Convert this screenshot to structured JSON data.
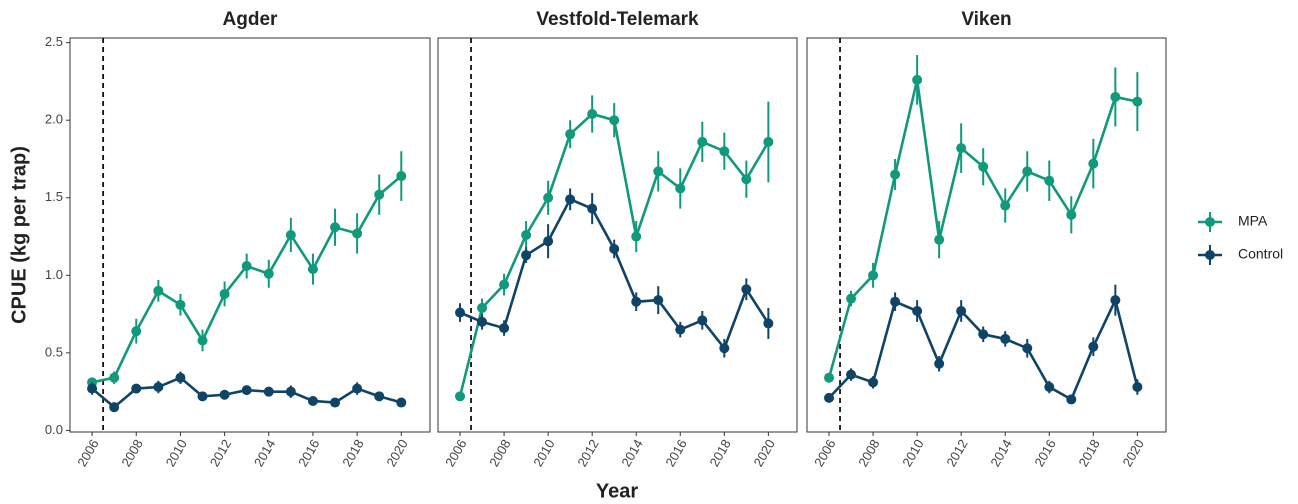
{
  "y_label": "CPUE (kg per trap)",
  "x_label": "Year",
  "chart_data": [
    {
      "type": "line",
      "title": "Agder",
      "x": [
        2006,
        2007,
        2008,
        2009,
        2010,
        2011,
        2012,
        2013,
        2014,
        2015,
        2016,
        2017,
        2018,
        2019,
        2020
      ],
      "series": [
        {
          "name": "MPA",
          "color": "#11997b",
          "values": [
            0.31,
            0.34,
            0.64,
            0.9,
            0.81,
            0.58,
            0.88,
            1.06,
            1.01,
            1.26,
            1.04,
            1.31,
            1.27,
            1.52,
            1.64
          ],
          "errors": [
            0.03,
            0.04,
            0.08,
            0.07,
            0.07,
            0.07,
            0.08,
            0.08,
            0.09,
            0.11,
            0.1,
            0.12,
            0.13,
            0.13,
            0.16
          ]
        },
        {
          "name": "Control",
          "color": "#0f4466",
          "values": [
            0.27,
            0.15,
            0.27,
            0.28,
            0.34,
            0.22,
            0.23,
            0.26,
            0.25,
            0.25,
            0.19,
            0.18,
            0.27,
            0.22,
            0.18
          ],
          "errors": [
            0.04,
            0.02,
            0.03,
            0.04,
            0.04,
            0.02,
            0.03,
            0.03,
            0.03,
            0.04,
            0.02,
            0.02,
            0.04,
            0.02,
            0.02
          ]
        }
      ],
      "marker_x": 2006.5,
      "xlim": [
        2005,
        2021.3
      ],
      "xticks": [
        2006,
        2008,
        2010,
        2012,
        2014,
        2016,
        2018,
        2020
      ],
      "ylim": [
        -0.01,
        2.53
      ],
      "yticks": [
        {
          "value": 0,
          "label": "0.0"
        },
        {
          "value": 0.5,
          "label": "0.5"
        },
        {
          "value": 1,
          "label": "1.0"
        },
        {
          "value": 1.5,
          "label": "1.5"
        },
        {
          "value": 2,
          "label": "2.0"
        },
        {
          "value": 2.5,
          "label": "2.5"
        }
      ]
    },
    {
      "type": "line",
      "title": "Vestfold-Telemark",
      "x": [
        2006,
        2007,
        2008,
        2009,
        2010,
        2011,
        2012,
        2013,
        2014,
        2015,
        2016,
        2017,
        2018,
        2019,
        2020
      ],
      "series": [
        {
          "name": "MPA",
          "color": "#11997b",
          "values": [
            0.22,
            0.79,
            0.94,
            1.26,
            1.5,
            1.91,
            2.04,
            2.0,
            1.25,
            1.67,
            1.56,
            1.86,
            1.8,
            1.62,
            1.86
          ],
          "errors": [
            0.02,
            0.06,
            0.07,
            0.09,
            0.11,
            0.09,
            0.12,
            0.11,
            0.1,
            0.13,
            0.13,
            0.13,
            0.12,
            0.12,
            0.26
          ]
        },
        {
          "name": "Control",
          "color": "#0f4466",
          "values": [
            0.76,
            0.7,
            0.66,
            1.13,
            1.22,
            1.49,
            1.43,
            1.17,
            0.83,
            0.84,
            0.65,
            0.71,
            0.53,
            0.91,
            0.69
          ],
          "errors": [
            0.06,
            0.05,
            0.05,
            0.05,
            0.11,
            0.07,
            0.1,
            0.06,
            0.06,
            0.09,
            0.05,
            0.06,
            0.06,
            0.07,
            0.1
          ]
        }
      ],
      "marker_x": 2006.5,
      "xlim": [
        2005,
        2021.3
      ],
      "xticks": [
        2006,
        2008,
        2010,
        2012,
        2014,
        2016,
        2018,
        2020
      ],
      "ylim": [
        -0.01,
        2.53
      ]
    },
    {
      "type": "line",
      "title": "Viken",
      "x": [
        2006,
        2007,
        2008,
        2009,
        2010,
        2011,
        2012,
        2013,
        2014,
        2015,
        2016,
        2017,
        2018,
        2019,
        2020
      ],
      "series": [
        {
          "name": "MPA",
          "color": "#11997b",
          "values": [
            0.34,
            0.85,
            1.0,
            1.65,
            2.26,
            1.23,
            1.82,
            1.7,
            1.45,
            1.67,
            1.61,
            1.39,
            1.72,
            2.15,
            2.12
          ],
          "errors": [
            0.03,
            0.05,
            0.08,
            0.1,
            0.16,
            0.12,
            0.16,
            0.12,
            0.11,
            0.13,
            0.13,
            0.12,
            0.16,
            0.19,
            0.19
          ]
        },
        {
          "name": "Control",
          "color": "#0f4466",
          "values": [
            0.21,
            0.36,
            0.31,
            0.83,
            0.77,
            0.43,
            0.77,
            0.62,
            0.59,
            0.53,
            0.28,
            0.2,
            0.54,
            0.84,
            0.28
          ],
          "errors": [
            0.02,
            0.04,
            0.04,
            0.06,
            0.07,
            0.05,
            0.07,
            0.05,
            0.05,
            0.06,
            0.04,
            0.02,
            0.06,
            0.1,
            0.05
          ]
        }
      ],
      "marker_x": 2006.5,
      "xlim": [
        2005,
        2021.3
      ],
      "xticks": [
        2006,
        2008,
        2010,
        2012,
        2014,
        2016,
        2018,
        2020
      ],
      "ylim": [
        -0.01,
        2.53
      ]
    }
  ]
}
